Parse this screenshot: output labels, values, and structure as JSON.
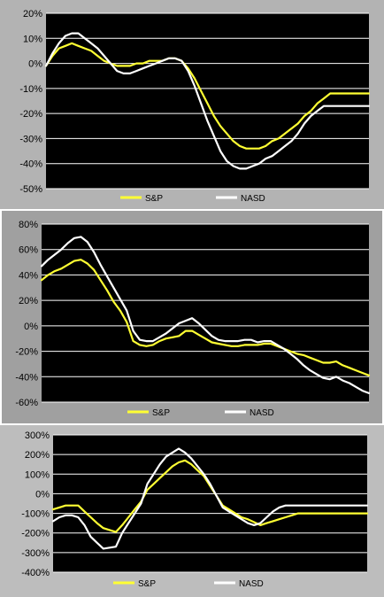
{
  "charts": [
    {
      "legend": [
        {
          "label": "S&P",
          "color": "#ffff33"
        },
        {
          "label": "NASD",
          "color": "#ffffff"
        }
      ]
    },
    {
      "legend": [
        {
          "label": "S&P",
          "color": "#ffff33"
        },
        {
          "label": "NASD",
          "color": "#ffffff"
        }
      ]
    },
    {
      "legend": [
        {
          "label": "S&P",
          "color": "#ffff33"
        },
        {
          "label": "NASD",
          "color": "#ffffff"
        }
      ]
    }
  ],
  "chart_data": [
    {
      "type": "line",
      "x": [
        0,
        1,
        2,
        3,
        4,
        5,
        6,
        7,
        8,
        9,
        10,
        11,
        12,
        13,
        14,
        15,
        16,
        17,
        18,
        19,
        20,
        21,
        22,
        23,
        24,
        25,
        26,
        27,
        28,
        29,
        30,
        31,
        32,
        33,
        34,
        35,
        36,
        37,
        38,
        39,
        40,
        41,
        42,
        43,
        44,
        45,
        46,
        47,
        48,
        49,
        50
      ],
      "xlim": [
        0,
        50
      ],
      "ylim": [
        -50,
        20
      ],
      "yticks": [
        20,
        10,
        0,
        -10,
        -20,
        -30,
        -40,
        -50
      ],
      "ytick_labels": [
        "20%",
        "10%",
        "0%",
        "-10%",
        "-20%",
        "-30%",
        "-40%",
        "-50%"
      ],
      "grid": true,
      "legend_position": "bottom",
      "series": [
        {
          "name": "S&P",
          "color": "#ffff33",
          "values": [
            -1,
            3,
            6,
            7,
            8,
            7,
            6,
            5,
            3,
            1,
            0,
            -1,
            -1,
            -1,
            0,
            0,
            1,
            1,
            1,
            2,
            2,
            1,
            -2,
            -6,
            -11,
            -16,
            -21,
            -25,
            -28,
            -31,
            -33,
            -34,
            -34,
            -34,
            -33,
            -31,
            -30,
            -28,
            -26,
            -24,
            -21,
            -19,
            -16,
            -14,
            -12,
            -12,
            -12,
            -12,
            -12,
            -12,
            -12
          ]
        },
        {
          "name": "NASD",
          "color": "#ffffff",
          "values": [
            -1,
            4,
            8,
            11,
            12,
            12,
            10,
            8,
            6,
            3,
            0,
            -3,
            -4,
            -4,
            -3,
            -2,
            -1,
            0,
            1,
            2,
            2,
            1,
            -3,
            -9,
            -16,
            -23,
            -29,
            -35,
            -39,
            -41,
            -42,
            -42,
            -41,
            -40,
            -38,
            -37,
            -35,
            -33,
            -31,
            -28,
            -24,
            -21,
            -19,
            -17,
            -17,
            -17,
            -17,
            -17,
            -17,
            -17,
            -17
          ]
        }
      ]
    },
    {
      "type": "line",
      "x": [
        0,
        1,
        2,
        3,
        4,
        5,
        6,
        7,
        8,
        9,
        10,
        11,
        12,
        13,
        14,
        15,
        16,
        17,
        18,
        19,
        20,
        21,
        22,
        23,
        24,
        25,
        26,
        27,
        28,
        29,
        30,
        31,
        32,
        33,
        34,
        35,
        36,
        37,
        38,
        39,
        40,
        41,
        42,
        43,
        44,
        45,
        46,
        47,
        48,
        49,
        50
      ],
      "xlim": [
        0,
        50
      ],
      "ylim": [
        -60,
        80
      ],
      "yticks": [
        80,
        60,
        40,
        20,
        0,
        -20,
        -40,
        -60
      ],
      "ytick_labels": [
        "80%",
        "60%",
        "40%",
        "20%",
        "0%",
        "-20%",
        "-40%",
        "-60%"
      ],
      "grid": true,
      "legend_position": "bottom",
      "series": [
        {
          "name": "S&P",
          "color": "#ffff33",
          "values": [
            36,
            40,
            43,
            45,
            48,
            51,
            52,
            49,
            44,
            36,
            28,
            19,
            12,
            3,
            -12,
            -15,
            -16,
            -15,
            -12,
            -10,
            -9,
            -8,
            -4,
            -4,
            -7,
            -10,
            -13,
            -14,
            -15,
            -16,
            -16,
            -15,
            -15,
            -15,
            -14,
            -14,
            -16,
            -18,
            -20,
            -22,
            -23,
            -25,
            -27,
            -29,
            -29,
            -28,
            -31,
            -33,
            -35,
            -37,
            -39
          ]
        },
        {
          "name": "NASD",
          "color": "#ffffff",
          "values": [
            47,
            52,
            56,
            60,
            65,
            69,
            70,
            66,
            58,
            48,
            39,
            30,
            21,
            12,
            -4,
            -11,
            -12,
            -12,
            -9,
            -6,
            -2,
            2,
            4,
            6,
            2,
            -3,
            -8,
            -11,
            -12,
            -12,
            -12,
            -11,
            -11,
            -13,
            -12,
            -12,
            -15,
            -18,
            -22,
            -26,
            -31,
            -35,
            -38,
            -41,
            -42,
            -40,
            -43,
            -45,
            -48,
            -51,
            -53
          ]
        }
      ]
    },
    {
      "type": "line",
      "x": [
        0,
        1,
        2,
        3,
        4,
        5,
        6,
        7,
        8,
        9,
        10,
        11,
        12,
        13,
        14,
        15,
        16,
        17,
        18,
        19,
        20,
        21,
        22,
        23,
        24,
        25,
        26,
        27,
        28,
        29,
        30,
        31,
        32,
        33,
        34,
        35,
        36,
        37,
        38,
        39,
        40,
        41,
        42,
        43,
        44,
        45,
        46,
        47,
        48,
        49,
        50
      ],
      "xlim": [
        0,
        50
      ],
      "ylim": [
        -400,
        300
      ],
      "yticks": [
        300,
        200,
        100,
        0,
        -100,
        -200,
        -300,
        -400
      ],
      "ytick_labels": [
        "300%",
        "200%",
        "100%",
        "0%",
        "-100%",
        "-200%",
        "-300%",
        "-400%"
      ],
      "grid": true,
      "legend_position": "bottom",
      "series": [
        {
          "name": "S&P",
          "color": "#ffff33",
          "values": [
            -80,
            -70,
            -60,
            -60,
            -60,
            -90,
            -120,
            -150,
            -175,
            -185,
            -195,
            -160,
            -120,
            -80,
            -40,
            20,
            50,
            80,
            110,
            140,
            160,
            170,
            150,
            120,
            90,
            40,
            -10,
            -60,
            -80,
            -100,
            -120,
            -130,
            -145,
            -160,
            -150,
            -140,
            -130,
            -120,
            -110,
            -100,
            -100,
            -100,
            -100,
            -100,
            -100,
            -100,
            -100,
            -100,
            -100,
            -100,
            -100
          ]
        },
        {
          "name": "NASD",
          "color": "#ffffff",
          "values": [
            -140,
            -120,
            -110,
            -110,
            -120,
            -160,
            -220,
            -250,
            -280,
            -275,
            -270,
            -200,
            -150,
            -100,
            -50,
            50,
            100,
            150,
            190,
            210,
            230,
            210,
            180,
            140,
            100,
            50,
            -10,
            -70,
            -90,
            -110,
            -130,
            -150,
            -160,
            -150,
            -120,
            -90,
            -70,
            -60,
            -60,
            -60,
            -60,
            -60,
            -60,
            -60,
            -60,
            -60,
            -60,
            -60,
            -60,
            -60,
            -60
          ]
        }
      ]
    }
  ]
}
